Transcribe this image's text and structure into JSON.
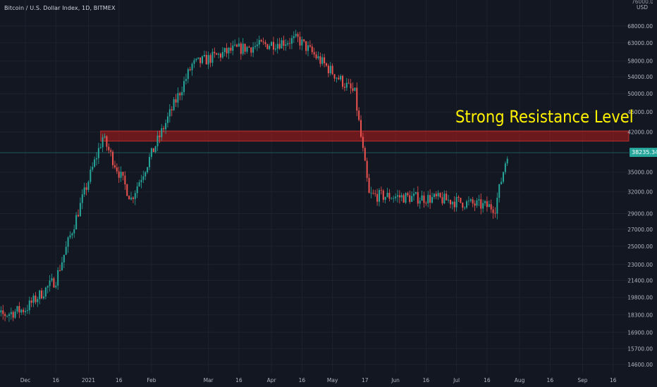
{
  "header": {
    "symbol_title": "Bitcoin / U.S. Dollar Index, 1D, BITMEX"
  },
  "price_axis": {
    "currency": "USD",
    "top_cut_label": "76000.00",
    "current_price": "38235.34"
  },
  "annotation": {
    "text": "Strong Resistance Level"
  },
  "colors": {
    "background": "#131722",
    "up": "#26a69a",
    "down": "#ef5350",
    "resistance_zone": "#b71c1c",
    "annotation": "#fff200",
    "grid": "#1e222d"
  },
  "chart_data": {
    "type": "candlestick",
    "scale": "log",
    "y_ticks": [
      "68000.00",
      "63000.00",
      "58000.00",
      "54000.00",
      "50000.00",
      "46000.00",
      "42000.00",
      "35000.00",
      "32000.00",
      "29000.00",
      "27000.00",
      "25000.00",
      "23000.00",
      "21400.00",
      "19800.00",
      "18300.00",
      "16900.00",
      "15700.00",
      "14600.00"
    ],
    "x_ticks": [
      "Dec",
      "16",
      "2021",
      "16",
      "Feb",
      "Mar",
      "16",
      "Apr",
      "16",
      "May",
      "17",
      "Jun",
      "16",
      "Jul",
      "16",
      "Aug",
      "16",
      "Sep",
      "16"
    ],
    "resistance_zone": [
      40300,
      42200
    ],
    "current_price": 38235.34,
    "key_points": [
      {
        "date": "2020-12-01",
        "price": 18800
      },
      {
        "date": "2020-12-16",
        "price": 21500
      },
      {
        "date": "2021-01-08",
        "price": 41000
      },
      {
        "date": "2021-01-22",
        "price": 31000
      },
      {
        "date": "2021-02-21",
        "price": 57000
      },
      {
        "date": "2021-03-13",
        "price": 61000
      },
      {
        "date": "2021-04-14",
        "price": 64000
      },
      {
        "date": "2021-05-12",
        "price": 50000
      },
      {
        "date": "2021-05-19",
        "price": 31500
      },
      {
        "date": "2021-06-22",
        "price": 31000
      },
      {
        "date": "2021-07-20",
        "price": 29800
      },
      {
        "date": "2021-07-26",
        "price": 38235
      }
    ]
  }
}
